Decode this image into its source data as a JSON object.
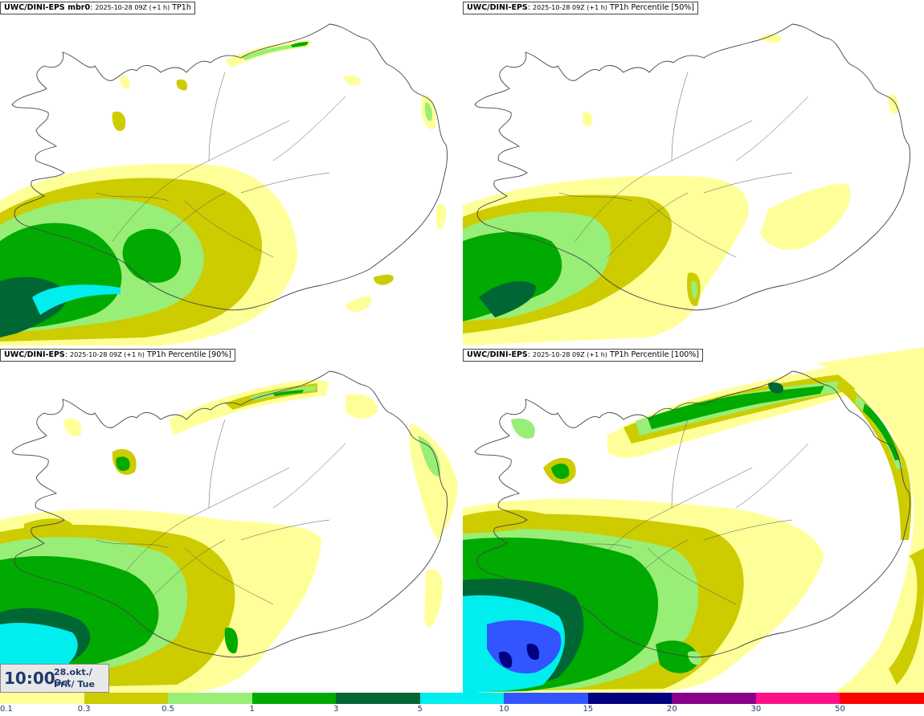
{
  "panels": [
    {
      "model": "UWC/DINI-EPS",
      "model_suffix": " mbr0",
      "run": "2025-10-28 09Z (+1 h)",
      "field": "TP1h"
    },
    {
      "model": "UWC/DINI-EPS",
      "model_suffix": "",
      "run": "2025-10-28 09Z (+1 h)",
      "field": "TP1h Percentile [50%]"
    },
    {
      "model": "UWC/DINI-EPS",
      "model_suffix": "",
      "run": "2025-10-28 09Z (+1 h)",
      "field": "TP1h Percentile [90%]"
    },
    {
      "model": "UWC/DINI-EPS",
      "model_suffix": "",
      "run": "2025-10-28 09Z (+1 h)",
      "field": "TP1h Percentile [100%]"
    }
  ],
  "timebox": {
    "time": "10:00",
    "date_line1": "28.okt./ Oct",
    "date_line2": "Þri./ Tue"
  },
  "legend": {
    "labels": [
      "0.1",
      "0.3",
      "0.5",
      "1",
      "3",
      "5",
      "10",
      "15",
      "20",
      "30",
      "50"
    ],
    "colors": [
      "#ffff99",
      "#cccc00",
      "#99ee77",
      "#00aa00",
      "#006633",
      "#00eeee",
      "#3355ff",
      "#000080",
      "#880088",
      "#ff1188",
      "#ff0000"
    ]
  },
  "colors": {
    "c01": "#ffff99",
    "c03": "#cccc00",
    "c05": "#99ee77",
    "c1": "#00aa00",
    "c3": "#006633",
    "c5": "#00eeee",
    "c10": "#3355ff",
    "c15": "#000080",
    "coast": "#444444"
  }
}
